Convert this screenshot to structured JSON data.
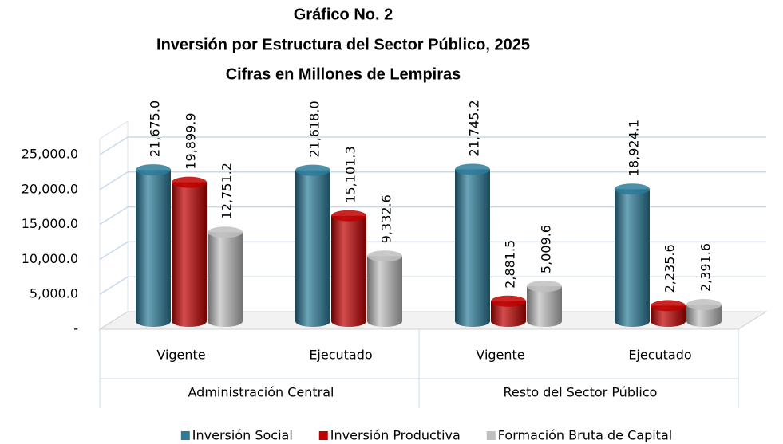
{
  "chart_data": {
    "type": "bar",
    "title": "Gráfico No. 2",
    "subtitle": "Inversión por Estructura del Sector Público, 2025",
    "unit_note": "Cifras en Millones de Lempiras",
    "categories": [
      "Vigente",
      "Ejecutado",
      "Vigente",
      "Ejecutado"
    ],
    "groups": [
      "Administración Central",
      "Resto del Sector Público"
    ],
    "series": [
      {
        "name": "Inversión Social",
        "color": "#2b7b99",
        "values": [
          21675.0,
          21618.0,
          21745.2,
          18924.1
        ],
        "value_labels": [
          "21,675.0",
          "21,618.0",
          "21,745.2",
          "18,924.1"
        ]
      },
      {
        "name": "Inversión Productiva",
        "color": "#c00000",
        "values": [
          19899.9,
          15101.3,
          2881.5,
          2235.6
        ],
        "value_labels": [
          "19,899.9",
          "15,101.3",
          "2,881.5",
          "2,235.6"
        ]
      },
      {
        "name": "Formación Bruta de Capital",
        "color": "#bfbfbf",
        "values": [
          12751.2,
          9332.6,
          5009.6,
          2391.6
        ],
        "value_labels": [
          "12,751.2",
          "9,332.6",
          "5,009.6",
          "2,391.6"
        ]
      }
    ],
    "ylim": [
      0,
      25000
    ],
    "yticks": [
      {
        "value": 0,
        "label": "-"
      },
      {
        "value": 5000,
        "label": "5,000.0"
      },
      {
        "value": 10000,
        "label": "10,000.0"
      },
      {
        "value": 15000,
        "label": "15,000.0"
      },
      {
        "value": 20000,
        "label": "20,000.0"
      },
      {
        "value": 25000,
        "label": "25,000.0"
      }
    ],
    "grid": true,
    "legend": "bottom"
  }
}
